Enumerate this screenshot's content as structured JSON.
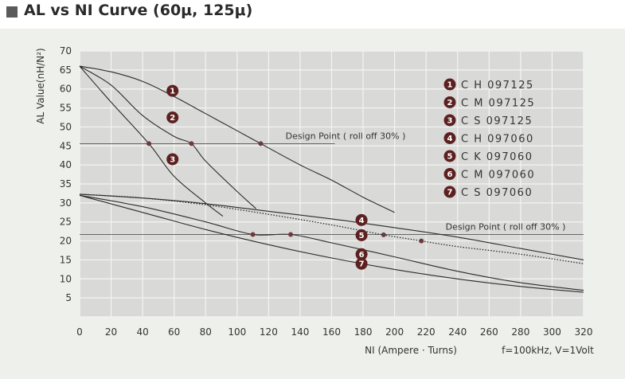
{
  "title": "AL vs NI Curve (60μ, 125μ)",
  "chart_data": {
    "type": "line",
    "title": "AL vs NI Curve (60μ, 125μ)",
    "xlabel": "NI (Ampere · Turns)",
    "ylabel": "AL Value(nH/N²)",
    "condition": "f=100kHz, V=1Volt",
    "xlim": [
      0,
      320
    ],
    "ylim": [
      0,
      70
    ],
    "x_ticks": [
      "0",
      "20",
      "40",
      "60",
      "80",
      "100",
      "120",
      "140",
      "160",
      "180",
      "200",
      "220",
      "240",
      "260",
      "280",
      "300",
      "320"
    ],
    "y_ticks": [
      "5",
      "10",
      "15",
      "20",
      "25",
      "30",
      "35",
      "40",
      "45",
      "50",
      "55",
      "60",
      "65",
      "70"
    ],
    "grid": true,
    "series": [
      {
        "id": "1",
        "name": "C H 097125",
        "style": "solid",
        "x": [
          0,
          20,
          40,
          60,
          80,
          100,
          115,
          140,
          160,
          180,
          200
        ],
        "y": [
          66,
          64.5,
          62,
          58,
          53.5,
          49,
          45.6,
          40,
          36,
          31.5,
          27.5
        ],
        "marker_x": 115,
        "badge_at": [
          59,
          59.5
        ]
      },
      {
        "id": "2",
        "name": "C M 097125",
        "style": "solid",
        "x": [
          0,
          20,
          40,
          60,
          71,
          80,
          100,
          112
        ],
        "y": [
          66,
          61,
          53,
          47.5,
          45.6,
          41,
          33,
          28.5
        ],
        "marker_x": 71,
        "badge_at": [
          59,
          52.5
        ]
      },
      {
        "id": "3",
        "name": "C S 097125",
        "style": "solid",
        "x": [
          0,
          20,
          44,
          60,
          80,
          91
        ],
        "y": [
          66,
          56.5,
          45.6,
          37,
          30,
          26.5
        ],
        "marker_x": 44,
        "badge_at": [
          59,
          41.5
        ]
      },
      {
        "id": "4",
        "name": "C H 097060",
        "style": "solid",
        "x": [
          0,
          40,
          80,
          120,
          160,
          200,
          240,
          280,
          320
        ],
        "y": [
          32.3,
          31.3,
          29.8,
          27.8,
          25.8,
          23.5,
          21,
          18,
          15
        ],
        "badge_at": [
          179,
          25.5
        ]
      },
      {
        "id": "5",
        "name": "C K 097060",
        "style": "dotted",
        "x": [
          0,
          40,
          80,
          120,
          160,
          193,
          217,
          240,
          280,
          320
        ],
        "y": [
          32.3,
          31.3,
          29.5,
          27,
          24.2,
          21.6,
          20,
          18.5,
          16.5,
          14
        ],
        "marker_x": [
          193,
          217
        ],
        "badge_at": [
          179,
          21.5
        ]
      },
      {
        "id": "6",
        "name": "C M 097060",
        "style": "solid",
        "x": [
          0,
          40,
          80,
          110,
          134,
          160,
          200,
          240,
          280,
          320
        ],
        "y": [
          32,
          29,
          25,
          21.7,
          21.7,
          19.5,
          15.8,
          12,
          9,
          7
        ],
        "marker_x": [
          110,
          134
        ],
        "badge_at": [
          179,
          16.5
        ]
      },
      {
        "id": "7",
        "name": "C S 097060",
        "style": "solid",
        "x": [
          0,
          40,
          80,
          120,
          160,
          200,
          240,
          280,
          320
        ],
        "y": [
          32,
          27.5,
          23,
          19,
          15.5,
          12.5,
          10,
          8,
          6.5
        ],
        "badge_at": [
          179,
          14
        ]
      }
    ],
    "annotations": [
      {
        "text": "Design Point ( roll off 30% )",
        "value": 45.6,
        "line_from_x": 0,
        "line_to_x": 162
      },
      {
        "text": "Design Point ( roll off 30% )",
        "value": 21.7,
        "line_from_x": 0,
        "line_to_x": 320
      }
    ]
  }
}
